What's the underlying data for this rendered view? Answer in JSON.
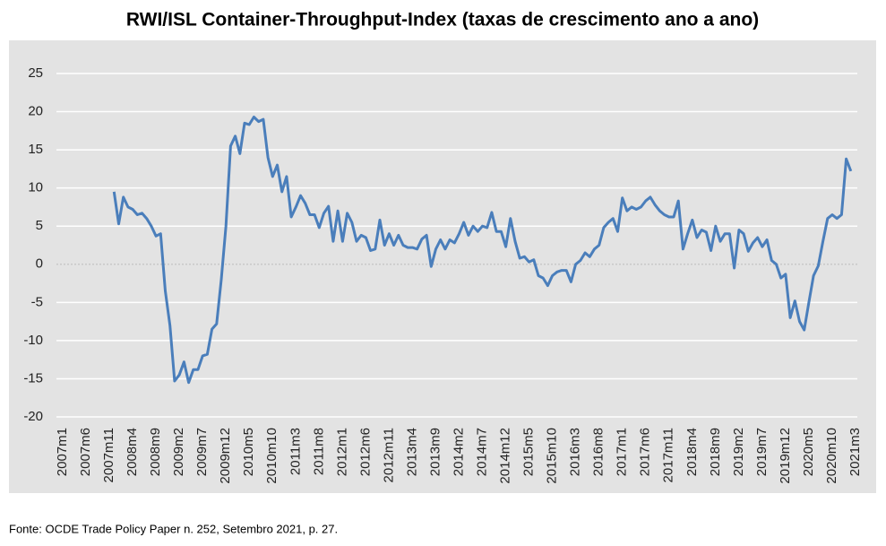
{
  "chart_data": {
    "type": "line",
    "title": "RWI/ISL Container-Throughput-Index (taxas de crescimento ano a ano)",
    "source": "Fonte: OCDE Trade Policy Paper n. 252, Setembro   2021, p. 27.",
    "color": "#4a7ebb",
    "grid": true,
    "ylim": [
      -20,
      25
    ],
    "yticks": [
      -20,
      -15,
      -10,
      -5,
      0,
      5,
      10,
      15,
      20,
      25
    ],
    "categories": [
      "2007m1",
      null,
      null,
      null,
      null,
      "2007m6",
      null,
      null,
      null,
      null,
      "2007m11",
      null,
      null,
      null,
      null,
      "2008m4",
      null,
      null,
      null,
      null,
      "2008m9",
      null,
      null,
      null,
      null,
      "2009m2",
      null,
      null,
      null,
      null,
      "2009m7",
      null,
      null,
      null,
      null,
      "2009m12",
      null,
      null,
      null,
      null,
      "2010m5",
      null,
      null,
      null,
      null,
      "2010m10",
      null,
      null,
      null,
      null,
      "2011m3",
      null,
      null,
      null,
      null,
      "2011m8",
      null,
      null,
      null,
      null,
      "2012m1",
      null,
      null,
      null,
      null,
      "2012m6",
      null,
      null,
      null,
      null,
      "2012m11",
      null,
      null,
      null,
      null,
      "2013m4",
      null,
      null,
      null,
      null,
      "2013m9",
      null,
      null,
      null,
      null,
      "2014m2",
      null,
      null,
      null,
      null,
      "2014m7",
      null,
      null,
      null,
      null,
      "2014m12",
      null,
      null,
      null,
      null,
      "2015m5",
      null,
      null,
      null,
      null,
      "2015m10",
      null,
      null,
      null,
      null,
      "2016m3",
      null,
      null,
      null,
      null,
      "2016m8",
      null,
      null,
      null,
      null,
      "2017m1",
      null,
      null,
      null,
      null,
      "2017m6",
      null,
      null,
      null,
      null,
      "2017m11",
      null,
      null,
      null,
      null,
      "2018m4",
      null,
      null,
      null,
      null,
      "2018m9",
      null,
      null,
      null,
      null,
      "2019m2",
      null,
      null,
      null,
      null,
      "2019m7",
      null,
      null,
      null,
      null,
      "2019m12",
      null,
      null,
      null,
      null,
      "2020m5",
      null,
      null,
      null,
      null,
      "2020m10",
      null,
      null,
      null,
      null,
      "2021m3"
    ],
    "values": [
      null,
      null,
      null,
      null,
      null,
      null,
      null,
      null,
      null,
      null,
      null,
      9.5,
      5.3,
      8.8,
      7.5,
      7.2,
      6.5,
      6.7,
      6.0,
      5.0,
      3.7,
      4.0,
      -3.5,
      -8.0,
      -15.3,
      -14.5,
      -12.8,
      -15.5,
      -13.8,
      -13.8,
      -12.0,
      -11.8,
      -8.5,
      -7.8,
      -2,
      5,
      15.5,
      16.8,
      14.5,
      18.5,
      18.3,
      19.3,
      18.7,
      19.0,
      14,
      11.5,
      13,
      9.5,
      11.5,
      6.2,
      7.5,
      9.0,
      8.0,
      6.5,
      6.5,
      4.8,
      6.7,
      7.6,
      3.0,
      7.0,
      3.0,
      6.7,
      5.5,
      3.0,
      3.8,
      3.5,
      1.8,
      2.0,
      5.8,
      2.5,
      4.0,
      2.5,
      3.8,
      2.5,
      2.2,
      2.2,
      2.0,
      3.3,
      3.8,
      -0.3,
      2.0,
      3.2,
      2.0,
      3.2,
      2.8,
      4.0,
      5.5,
      3.8,
      5.0,
      4.3,
      5.0,
      4.8,
      6.8,
      4.3,
      4.3,
      2.3,
      6.0,
      3.0,
      0.8,
      1.0,
      0.3,
      0.6,
      -1.5,
      -1.8,
      -2.8,
      -1.5,
      -1.0,
      -0.8,
      -0.8,
      -2.3,
      0,
      0.5,
      1.5,
      1.0,
      2.0,
      2.5,
      4.8,
      5.5,
      6.0,
      4.3,
      8.7,
      7.0,
      7.5,
      7.2,
      7.5,
      8.3,
      8.8,
      7.8,
      7.0,
      6.5,
      6.2,
      6.2,
      8.3,
      2.0,
      4.0,
      5.8,
      3.5,
      4.5,
      4.2,
      1.8,
      5.0,
      3.0,
      4.0,
      4.0,
      -0.5,
      4.5,
      4.0,
      1.7,
      2.8,
      3.5,
      2.3,
      3.2,
      0.5,
      0,
      -1.8,
      -1.3,
      -7.0,
      -4.8,
      -7.5,
      -8.6,
      -5,
      -1.5,
      -0.2,
      3,
      6.0,
      6.5,
      6.0,
      6.5,
      13.8,
      12.2,
      null
    ]
  }
}
